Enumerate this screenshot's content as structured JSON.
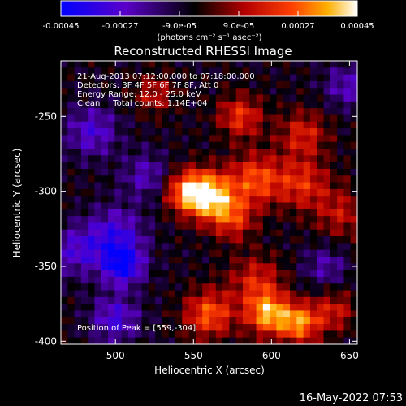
{
  "colorbar": {
    "tick_labels": [
      "-0.00045",
      "-0.00027",
      "-9.0e-05",
      "9.0e-05",
      "0.00027",
      "0.00045"
    ],
    "tick_values": [
      -0.00045,
      -0.00027,
      -9e-05,
      9e-05,
      0.00027,
      0.00045
    ],
    "range": [
      -0.00045,
      0.00045
    ],
    "unit_label": "(photons cm⁻² s⁻¹ asec⁻²)",
    "colormap_stops": [
      "#0000ff",
      "#5a00c8",
      "#000000",
      "#b40000",
      "#ff4000",
      "#ffb000",
      "#ffffff"
    ]
  },
  "annotations": {
    "time_range": "21-Aug-2013 07:12:00.000 to 07:18:00.000",
    "detectors": "Detectors: 3F 4F 5F 6F 7F 8F, Att 0",
    "energy_range": "Energy Range: 12.0 - 25.0 keV",
    "clean_counts": "Clean     Total counts: 1.14E+04",
    "peak_position": "Position of Peak = [559,-304]"
  },
  "footer": {
    "timestamp": "16-May-2022 07:53"
  },
  "chart_data": {
    "type": "heatmap",
    "title": "Reconstructed RHESSI Image",
    "xlabel": "Heliocentric X (arcsec)",
    "ylabel": "Heliocentric Y (arcsec)",
    "xlim": [
      465,
      655
    ],
    "ylim": [
      -402,
      -213
    ],
    "x_ticks": [
      500,
      550,
      600,
      650
    ],
    "y_ticks": [
      -400,
      -350,
      -300,
      -250
    ],
    "x_tick_labels": [
      "500",
      "550",
      "600",
      "650"
    ],
    "y_tick_labels": [
      "-400",
      "-350",
      "-300",
      "-250"
    ],
    "peak": [
      559,
      -304
    ],
    "grid": false,
    "sources": [
      {
        "x": 560,
        "y": -303,
        "amp": 0.00046,
        "r": 11
      },
      {
        "x": 545,
        "y": -300,
        "amp": 0.00032,
        "r": 10
      },
      {
        "x": 590,
        "y": -292,
        "amp": 0.0003,
        "r": 12
      },
      {
        "x": 620,
        "y": -295,
        "amp": 0.00024,
        "r": 12
      },
      {
        "x": 575,
        "y": -318,
        "amp": 0.00025,
        "r": 10
      },
      {
        "x": 598,
        "y": -382,
        "amp": 0.0004,
        "r": 10
      },
      {
        "x": 618,
        "y": -388,
        "amp": 0.00036,
        "r": 9
      },
      {
        "x": 560,
        "y": -382,
        "amp": 0.00032,
        "r": 11
      },
      {
        "x": 590,
        "y": -360,
        "amp": 0.00022,
        "r": 12
      },
      {
        "x": 640,
        "y": -380,
        "amp": 0.0002,
        "r": 10
      },
      {
        "x": 580,
        "y": -250,
        "amp": 0.00026,
        "r": 10
      },
      {
        "x": 620,
        "y": -262,
        "amp": 0.00022,
        "r": 11
      },
      {
        "x": 645,
        "y": -315,
        "amp": 0.00018,
        "r": 12
      },
      {
        "x": 525,
        "y": -235,
        "amp": 0.00018,
        "r": 9
      },
      {
        "x": 500,
        "y": -330,
        "amp": -0.00026,
        "r": 13
      },
      {
        "x": 505,
        "y": -350,
        "amp": -0.00034,
        "r": 9
      },
      {
        "x": 485,
        "y": -260,
        "amp": -0.00022,
        "r": 12
      },
      {
        "x": 500,
        "y": -385,
        "amp": -0.00024,
        "r": 11
      },
      {
        "x": 635,
        "y": -350,
        "amp": -0.00016,
        "r": 10
      },
      {
        "x": 520,
        "y": -290,
        "amp": -0.00018,
        "r": 11
      },
      {
        "x": 648,
        "y": -230,
        "amp": -0.00018,
        "r": 10
      },
      {
        "x": 475,
        "y": -340,
        "amp": -0.0002,
        "r": 12
      }
    ]
  }
}
